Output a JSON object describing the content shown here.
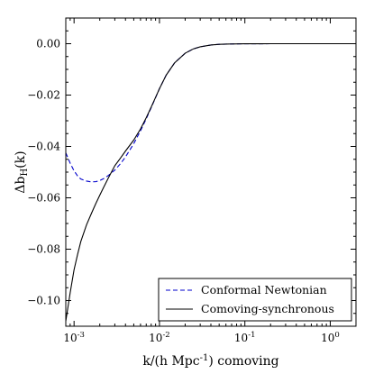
{
  "chart_data": {
    "type": "line",
    "x_scale": "log",
    "xlim": [
      0.0008,
      2.0
    ],
    "ylim": [
      -0.11,
      0.01
    ],
    "ylabel": "Δb",
    "ylabel_sub": "H",
    "ylabel_tail": "(k)",
    "xlabel_pre": "k/(h Mpc",
    "xlabel_sup": "-1",
    "xlabel_post": ") comoving",
    "x_ticks": [
      {
        "value": 0.001,
        "base": "10",
        "exp": "-3"
      },
      {
        "value": 0.01,
        "base": "10",
        "exp": "-2"
      },
      {
        "value": 0.1,
        "base": "10",
        "exp": "-1"
      },
      {
        "value": 1,
        "base": "10",
        "exp": "0"
      }
    ],
    "y_ticks": [
      {
        "value": 0.0,
        "label": "0.00"
      },
      {
        "value": -0.02,
        "label": "−0.02"
      },
      {
        "value": -0.04,
        "label": "−0.04"
      },
      {
        "value": -0.06,
        "label": "−0.06"
      },
      {
        "value": -0.08,
        "label": "−0.08"
      },
      {
        "value": -0.1,
        "label": "−0.10"
      }
    ],
    "grid": false,
    "legend_position": "lower-right",
    "series": [
      {
        "name": "Conformal Newtonian",
        "color": "#0000cc",
        "dash": "dashed",
        "x": [
          0.0008,
          0.0009,
          0.001,
          0.0011,
          0.0012,
          0.0014,
          0.0016,
          0.0018,
          0.002,
          0.0022,
          0.0025,
          0.003,
          0.0035,
          0.004,
          0.005,
          0.006,
          0.007,
          0.008,
          0.009,
          0.01,
          0.012,
          0.015,
          0.02,
          0.025,
          0.03,
          0.04,
          0.05,
          0.07,
          0.1,
          0.15,
          0.2,
          0.3,
          0.5,
          1.0,
          2.0
        ],
        "y": [
          -0.0425,
          -0.0465,
          -0.0495,
          -0.0515,
          -0.0527,
          -0.0535,
          -0.0538,
          -0.0537,
          -0.0533,
          -0.0526,
          -0.0514,
          -0.0492,
          -0.0467,
          -0.0441,
          -0.0389,
          -0.0339,
          -0.0292,
          -0.0249,
          -0.021,
          -0.0175,
          -0.0122,
          -0.0075,
          -0.0037,
          -0.002,
          -0.0012,
          -0.0005,
          -0.00025,
          -0.0001,
          -3e-05,
          -1e-05,
          0,
          0,
          0,
          0,
          0
        ]
      },
      {
        "name": "Comoving-synchronous",
        "color": "#000000",
        "dash": "solid",
        "x": [
          0.0008,
          0.0009,
          0.001,
          0.0011,
          0.0012,
          0.0014,
          0.0016,
          0.0018,
          0.002,
          0.0022,
          0.0025,
          0.003,
          0.0035,
          0.004,
          0.005,
          0.006,
          0.007,
          0.008,
          0.009,
          0.01,
          0.012,
          0.015,
          0.02,
          0.025,
          0.03,
          0.04,
          0.05,
          0.07,
          0.1,
          0.15,
          0.2,
          0.3,
          0.5,
          1.0,
          2.0
        ],
        "y": [
          -0.108,
          -0.097,
          -0.088,
          -0.082,
          -0.077,
          -0.0705,
          -0.066,
          -0.0622,
          -0.059,
          -0.0562,
          -0.0525,
          -0.0475,
          -0.0445,
          -0.0418,
          -0.0375,
          -0.0332,
          -0.0288,
          -0.0247,
          -0.0209,
          -0.0175,
          -0.0122,
          -0.0075,
          -0.0037,
          -0.002,
          -0.0012,
          -0.0005,
          -0.00025,
          -0.0001,
          -3e-05,
          -1e-05,
          0,
          0,
          0,
          0,
          0
        ]
      }
    ]
  }
}
